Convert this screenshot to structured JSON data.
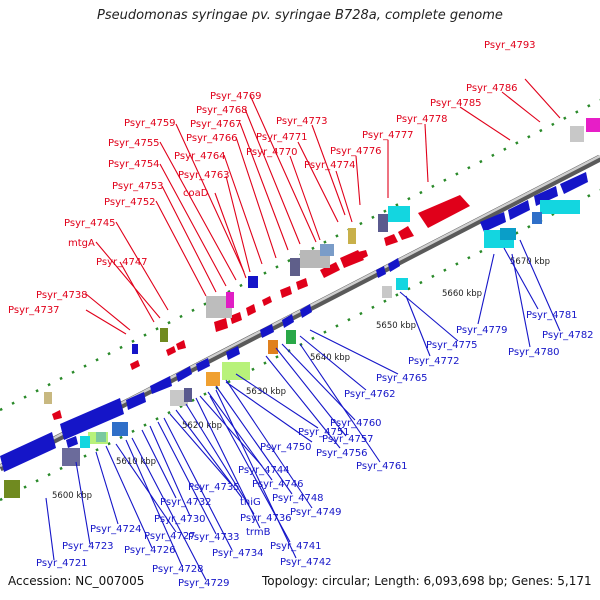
{
  "title": "Pseudomonas syringae pv. syringae B728a, complete genome",
  "accession": "Accession: NC_007005",
  "summary": "Topology: circular; Length: 6,093,698 bp; Genes: 5,171",
  "colors": {
    "forward_gene": "#e0001a",
    "reverse_gene": "#1515c8",
    "backbone": "#8c8c8c"
  },
  "scale_labels": [
    "5600 kbp",
    "5610 kbp",
    "5620 kbp",
    "5630 kbp",
    "5640 kbp",
    "5650 kbp",
    "5660 kbp",
    "5670 kbp"
  ],
  "forward_labels": [
    "Psyr_4793",
    "Psyr_4786",
    "Psyr_4785",
    "Psyr_4778",
    "Psyr_4777",
    "Psyr_4776",
    "Psyr_4774",
    "Psyr_4773",
    "Psyr_4771",
    "Psyr_4770",
    "Psyr_4769",
    "Psyr_4768",
    "Psyr_4767",
    "Psyr_4766",
    "Psyr_4764",
    "Psyr_4763",
    "Psyr_4759",
    "Psyr_4755",
    "Psyr_4754",
    "Psyr_4753",
    "coaD",
    "Psyr_4752",
    "Psyr_4745",
    "mtgA",
    "Psyr_4747",
    "Psyr_4738",
    "Psyr_4737"
  ],
  "reverse_labels": [
    "Psyr_4781",
    "Psyr_4782",
    "Psyr_4779",
    "Psyr_4780",
    "Psyr_4775",
    "Psyr_4772",
    "Psyr_4765",
    "Psyr_4762",
    "Psyr_4760",
    "Psyr_4757",
    "Psyr_4756",
    "Psyr_4761",
    "Psyr_4751",
    "Psyr_4750",
    "Psyr_4744",
    "Psyr_4746",
    "Psyr_4748",
    "Psyr_4749",
    "Psyr_4735",
    "thiG",
    "Psyr_4736",
    "trmB",
    "Psyr_4741",
    "Psyr_4742",
    "Psyr_4732",
    "Psyr_4730",
    "Psyr_4733",
    "Psyr_4734",
    "Psyr_4724",
    "Psyr_4727",
    "Psyr_4726",
    "Psyr_4728",
    "Psyr_4729",
    "Psyr_4723",
    "Psyr_4721"
  ]
}
